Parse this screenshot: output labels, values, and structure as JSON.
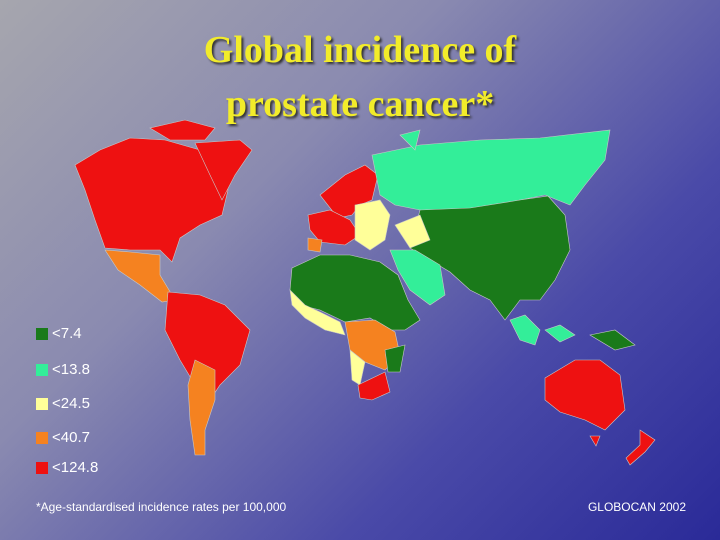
{
  "title_lines": [
    "Global incidence of",
    "prostate cancer*"
  ],
  "legend": [
    {
      "label": "<7.4",
      "color": "#1a7a1a"
    },
    {
      "label": "<13.8",
      "color": "#33ee99"
    },
    {
      "label": "<24.5",
      "color": "#ffff99"
    },
    {
      "label": "<40.7",
      "color": "#f58220"
    },
    {
      "label": "<124.8",
      "color": "#ee1111"
    }
  ],
  "footnote": "*Age-standardised incidence rates per 100,000",
  "source": "GLOBOCAN 2002"
}
